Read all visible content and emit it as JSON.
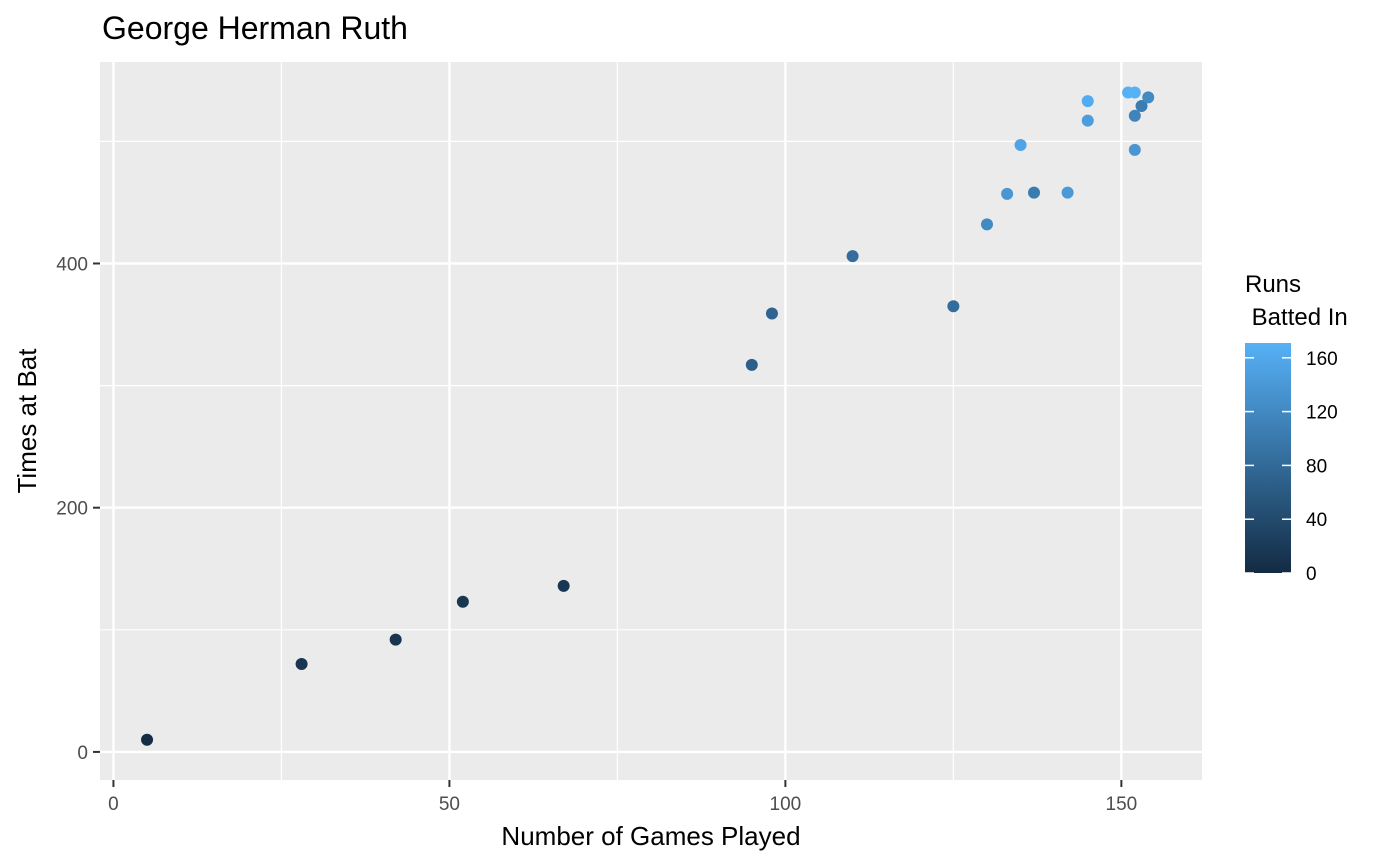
{
  "chart_data": {
    "type": "scatter",
    "title": "George Herman Ruth",
    "xlabel": "Number of Games Played",
    "ylabel": "Times at Bat",
    "xlim": [
      -2,
      162
    ],
    "ylim": [
      -23,
      565
    ],
    "x_ticks": [
      0,
      50,
      100,
      150
    ],
    "x_tick_labels": [
      "0",
      "50",
      "100",
      "150"
    ],
    "y_ticks": [
      0,
      200,
      400
    ],
    "y_tick_labels": [
      "0",
      "200",
      "400"
    ],
    "grid": true,
    "legend": {
      "title_lines": [
        "Runs",
        " Batted In"
      ],
      "position": "right",
      "type": "colorbar",
      "min": 0,
      "max": 171,
      "ticks": [
        0,
        40,
        80,
        120,
        160
      ],
      "tick_labels": [
        "0",
        "40",
        "80",
        "120",
        "160"
      ],
      "color_low": "#132B43",
      "color_high": "#56B1F7"
    },
    "points": [
      {
        "x": 5,
        "y": 10,
        "color_value": 2
      },
      {
        "x": 28,
        "y": 72,
        "color_value": 14
      },
      {
        "x": 42,
        "y": 92,
        "color_value": 12
      },
      {
        "x": 52,
        "y": 123,
        "color_value": 15
      },
      {
        "x": 67,
        "y": 136,
        "color_value": 15
      },
      {
        "x": 95,
        "y": 317,
        "color_value": 66
      },
      {
        "x": 98,
        "y": 359,
        "color_value": 73
      },
      {
        "x": 110,
        "y": 406,
        "color_value": 84
      },
      {
        "x": 125,
        "y": 365,
        "color_value": 84
      },
      {
        "x": 130,
        "y": 432,
        "color_value": 121
      },
      {
        "x": 133,
        "y": 457,
        "color_value": 137
      },
      {
        "x": 135,
        "y": 497,
        "color_value": 155
      },
      {
        "x": 137,
        "y": 458,
        "color_value": 103
      },
      {
        "x": 142,
        "y": 458,
        "color_value": 142
      },
      {
        "x": 145,
        "y": 533,
        "color_value": 164
      },
      {
        "x": 145,
        "y": 517,
        "color_value": 146
      },
      {
        "x": 151,
        "y": 540,
        "color_value": 170
      },
      {
        "x": 152,
        "y": 540,
        "color_value": 171
      },
      {
        "x": 152,
        "y": 521,
        "color_value": 114
      },
      {
        "x": 152,
        "y": 493,
        "color_value": 137
      },
      {
        "x": 153,
        "y": 529,
        "color_value": 104
      },
      {
        "x": 154,
        "y": 536,
        "color_value": 121
      }
    ]
  }
}
